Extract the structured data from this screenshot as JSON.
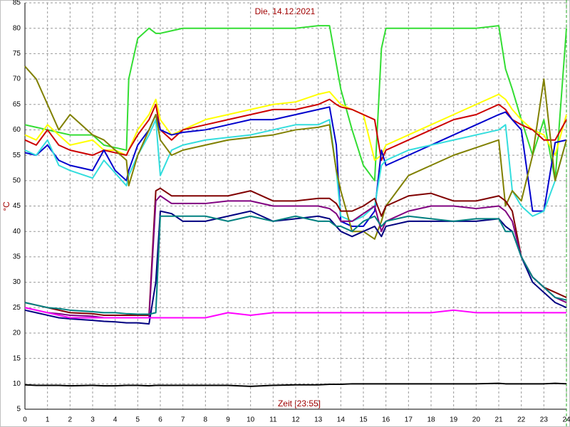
{
  "chart_data": {
    "type": "line",
    "title": "Die, 14.12.2021",
    "x_label": "Zeit [23:55]",
    "y_label": "°C",
    "x": [
      0,
      0.5,
      1,
      1.5,
      2,
      3,
      3.5,
      4,
      4.5,
      4.6,
      5,
      5.5,
      5.8,
      6,
      6.5,
      7,
      8,
      9,
      10,
      11,
      12,
      13,
      13.5,
      13.8,
      14,
      14.5,
      15,
      15.5,
      15.8,
      16,
      17,
      18,
      19,
      20,
      21,
      21.3,
      21.6,
      22,
      22.5,
      23,
      23.5,
      24
    ],
    "xlim": [
      0,
      24
    ],
    "xticks": [
      0,
      1,
      2,
      3,
      4,
      5,
      6,
      7,
      8,
      9,
      10,
      11,
      12,
      13,
      14,
      15,
      16,
      17,
      18,
      19,
      20,
      21,
      22,
      23,
      24
    ],
    "ylim": [
      5,
      85
    ],
    "yticks": [
      5,
      10,
      15,
      20,
      25,
      30,
      35,
      40,
      45,
      50,
      55,
      60,
      65,
      70,
      75,
      80,
      85
    ],
    "grid": true,
    "series": [
      {
        "color": "#33dd33",
        "values": [
          61,
          60.5,
          60,
          59.5,
          59,
          59,
          57,
          56.5,
          56,
          70,
          78,
          80,
          79,
          79,
          79.5,
          80,
          80,
          80,
          80,
          80,
          80,
          80.5,
          80.5,
          73,
          68,
          60,
          53,
          50,
          76,
          80,
          80,
          80,
          80,
          80,
          80.5,
          72,
          68,
          62,
          55,
          62,
          50,
          80
        ]
      },
      {
        "color": "#ffff00",
        "values": [
          59,
          58,
          61,
          59,
          57,
          58,
          56,
          56,
          55,
          56,
          60,
          63,
          66,
          62,
          59,
          60,
          62,
          63,
          64,
          65,
          65.5,
          67,
          67.5,
          66,
          65,
          64,
          63,
          54,
          55,
          57,
          59,
          61,
          63,
          65,
          67,
          66,
          64,
          62,
          60,
          59,
          55,
          63
        ]
      },
      {
        "color": "#cc0000",
        "values": [
          58,
          57,
          60,
          57,
          56,
          55,
          56,
          55.5,
          55,
          56,
          59,
          62,
          65,
          60,
          58,
          60,
          61,
          62,
          63,
          64,
          64,
          65,
          66,
          65,
          64.5,
          64,
          63,
          62,
          54,
          56,
          58,
          60,
          62,
          63,
          65,
          64,
          62,
          61,
          60,
          58,
          58,
          62
        ]
      },
      {
        "color": "#0000cc",
        "values": [
          55.5,
          55,
          57,
          54,
          53,
          52,
          56,
          52,
          50,
          52,
          57,
          60,
          63,
          60,
          59,
          59.5,
          60,
          61,
          62,
          62,
          63,
          64,
          64.5,
          57,
          42,
          41,
          41,
          44,
          56,
          53,
          55,
          57,
          59,
          61,
          63,
          63.5,
          62,
          60,
          44,
          44,
          57.5,
          58
        ]
      },
      {
        "color": "#33dddd",
        "values": [
          56,
          55,
          58,
          53,
          52,
          50.5,
          54,
          51.5,
          49,
          51,
          55,
          59,
          62,
          51,
          56,
          57,
          58,
          58.5,
          59,
          60,
          61,
          61,
          62,
          52,
          43,
          42,
          43,
          45,
          53,
          54,
          56,
          57,
          58,
          59,
          60,
          61,
          48,
          45,
          43,
          44,
          50,
          58
        ]
      },
      {
        "color": "#808000",
        "values": [
          72.5,
          70,
          65,
          60,
          63,
          59,
          58,
          56,
          54,
          49,
          55,
          60,
          63,
          58,
          55,
          56,
          57,
          58,
          58.5,
          59,
          60,
          60.5,
          61,
          52,
          48,
          40,
          40,
          38.5,
          42,
          45,
          51,
          53,
          55,
          56.5,
          58,
          45,
          48,
          46,
          55,
          70,
          50,
          58
        ]
      },
      {
        "color": "#800000",
        "values": [
          26,
          25.5,
          25,
          24.5,
          24,
          23.8,
          23.5,
          23.5,
          23.5,
          23.5,
          23.5,
          23.5,
          48,
          48.5,
          47,
          47,
          47,
          47,
          48,
          46,
          46,
          46.5,
          46.5,
          45.5,
          44,
          44,
          45,
          46.5,
          43,
          45,
          47,
          47.5,
          46,
          46,
          47,
          46,
          44,
          35,
          31,
          29,
          28,
          27
        ]
      },
      {
        "color": "#800080",
        "values": [
          25,
          24.5,
          24,
          23.8,
          23.5,
          23.3,
          23,
          23,
          23,
          23,
          23,
          23,
          46,
          47,
          45.5,
          45.5,
          45.5,
          46,
          46,
          45,
          45,
          45,
          44.5,
          43.5,
          42,
          42,
          43.5,
          45,
          40,
          42,
          44,
          45,
          45,
          44.5,
          45,
          44,
          42,
          35,
          31,
          29,
          27,
          26
        ]
      },
      {
        "color": "#000080",
        "values": [
          24.5,
          24,
          23.5,
          23,
          22.8,
          22.5,
          22.3,
          22.2,
          22,
          22,
          22,
          21.8,
          30,
          44,
          43.5,
          42,
          42,
          43,
          44,
          42,
          42.5,
          43,
          42.5,
          41,
          40,
          39,
          40,
          41,
          39,
          41,
          42,
          42,
          42,
          42,
          42.5,
          41,
          40,
          35,
          30,
          28,
          26,
          25
        ]
      },
      {
        "color": "#008080",
        "values": [
          26,
          25.5,
          25,
          24.8,
          24.5,
          24.2,
          24,
          24,
          23.8,
          23.8,
          23.7,
          23.7,
          24,
          43,
          43,
          43,
          43,
          42,
          43,
          42,
          43,
          42,
          42,
          41,
          41,
          40,
          42,
          43,
          41,
          42,
          43,
          42.5,
          42,
          42.5,
          42.5,
          40,
          40,
          35,
          31,
          29,
          27,
          26.5
        ]
      },
      {
        "color": "#ff00ff",
        "values": [
          25,
          24.5,
          24,
          23.5,
          23,
          23,
          23,
          23,
          23,
          23,
          23,
          23,
          23,
          23,
          23,
          23,
          23,
          24,
          23.5,
          24,
          24,
          24,
          24,
          24,
          24,
          24,
          24,
          24,
          24,
          24,
          24,
          24,
          24.5,
          24,
          24,
          24,
          24,
          24,
          24,
          24,
          24,
          24
        ]
      },
      {
        "color": "#000000",
        "values": [
          9.8,
          9.7,
          9.7,
          9.7,
          9.6,
          9.7,
          9.6,
          9.6,
          9.7,
          9.7,
          9.7,
          9.6,
          9.7,
          9.7,
          9.7,
          9.7,
          9.7,
          9.7,
          9.5,
          9.7,
          9.8,
          9.8,
          9.9,
          9.9,
          9.9,
          10,
          10,
          10,
          10,
          10,
          10,
          10,
          10,
          10,
          10.1,
          10,
          10,
          10,
          10,
          10,
          10.1,
          10
        ]
      }
    ]
  }
}
